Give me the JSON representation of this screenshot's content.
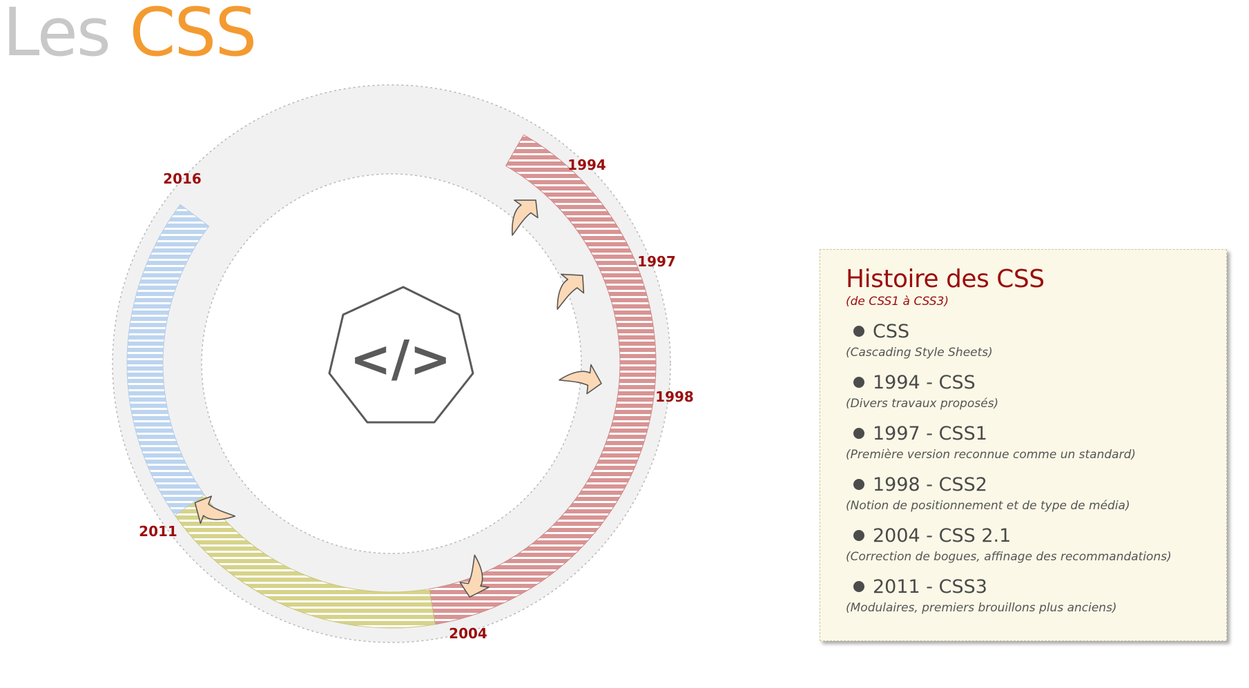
{
  "title": {
    "part1": "Les",
    "part2": "CSS"
  },
  "colors": {
    "title_gray": "#c8c8c8",
    "title_orange": "#f39b31",
    "dark_red": "#9b0d0d",
    "ring_background": "#f1f1f1",
    "segment_red": "#d89494",
    "segment_olive": "#d6d38a",
    "segment_blue": "#bcd4ef",
    "arrow_fill": "#fcd9b6",
    "arrow_stroke": "#555555",
    "panel_background": "#fbf8e7"
  },
  "diagram": {
    "center_icon": "code-icon",
    "center_symbol": "</>",
    "year_labels": [
      "1994",
      "1997",
      "1998",
      "2004",
      "2011",
      "2016"
    ],
    "segments": [
      {
        "from": "1994",
        "to": "2004",
        "color": "#d89494"
      },
      {
        "from": "2004",
        "to": "2011",
        "color": "#d6d38a"
      },
      {
        "from": "2011",
        "to": "2016",
        "color": "#bcd4ef"
      }
    ],
    "arrow_icon": "timeline-arrow-icon"
  },
  "panel": {
    "title": "Histoire des CSS",
    "subtitle": "(de CSS1 à CSS3)",
    "items": [
      {
        "title": "CSS",
        "desc": "(Cascading Style Sheets)"
      },
      {
        "title": "1994 - CSS",
        "desc": "(Divers travaux proposés)"
      },
      {
        "title": "1997 - CSS1",
        "desc": "(Première version reconnue comme un standard)"
      },
      {
        "title": "1998 - CSS2",
        "desc": "(Notion de positionnement et de type de média)"
      },
      {
        "title": "2004 - CSS 2.1",
        "desc": "(Correction de bogues, affinage des recommandations)"
      },
      {
        "title": "2011 - CSS3",
        "desc": "(Modulaires, premiers brouillons plus anciens)"
      }
    ]
  }
}
